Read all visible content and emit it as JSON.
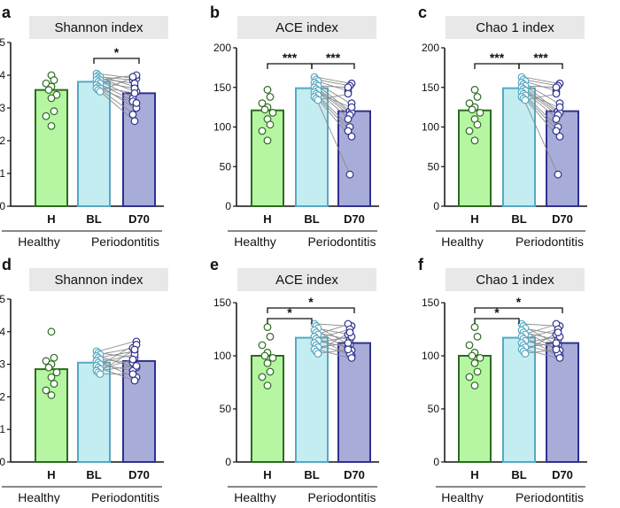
{
  "chart_data": [
    {
      "type": "bar",
      "panel_label": "a",
      "title": "Shannon index",
      "categories": [
        "H",
        "BL",
        "D70"
      ],
      "values": [
        3.55,
        3.8,
        3.45
      ],
      "ylim": [
        0,
        5
      ],
      "yticks": [
        0,
        1,
        2,
        3,
        4,
        5
      ],
      "ytick_labels": [
        "0",
        "1",
        "2",
        "3",
        "4",
        "5"
      ],
      "groups": [
        "Healthy",
        "Periodontitis"
      ],
      "points": {
        "H": [
          4.0,
          3.85,
          3.75,
          3.65,
          3.55,
          3.4,
          3.3,
          2.9,
          2.75,
          2.45
        ],
        "pairs": [
          [
            4.05,
            3.9
          ],
          [
            4.0,
            3.65
          ],
          [
            3.95,
            3.85
          ],
          [
            3.95,
            3.5
          ],
          [
            3.9,
            3.75
          ],
          [
            3.85,
            3.3
          ],
          [
            3.85,
            4.0
          ],
          [
            3.8,
            3.6
          ],
          [
            3.75,
            3.2
          ],
          [
            3.7,
            3.0
          ],
          [
            3.65,
            3.45
          ],
          [
            3.6,
            2.8
          ],
          [
            3.6,
            3.15
          ],
          [
            3.55,
            2.6
          ],
          [
            3.5,
            3.95
          ]
        ]
      },
      "significance": [
        {
          "from": "BL",
          "to": "D70",
          "label": "*"
        }
      ]
    },
    {
      "type": "bar",
      "panel_label": "b",
      "title": "ACE index",
      "categories": [
        "H",
        "BL",
        "D70"
      ],
      "values": [
        121,
        149,
        120
      ],
      "ylim": [
        0,
        200
      ],
      "yticks": [
        0,
        50,
        100,
        150,
        200
      ],
      "ytick_labels": [
        "0",
        "50",
        "100",
        "150",
        "200"
      ],
      "groups": [
        "Healthy",
        "Periodontitis"
      ],
      "points": {
        "H": [
          147,
          138,
          130,
          125,
          122,
          118,
          110,
          103,
          95,
          83
        ],
        "pairs": [
          [
            163,
            155
          ],
          [
            160,
            152
          ],
          [
            158,
            145
          ],
          [
            156,
            130
          ],
          [
            154,
            120
          ],
          [
            152,
            150
          ],
          [
            150,
            118
          ],
          [
            148,
            115
          ],
          [
            146,
            110
          ],
          [
            144,
            125
          ],
          [
            142,
            100
          ],
          [
            140,
            95
          ],
          [
            138,
            88
          ],
          [
            136,
            40
          ],
          [
            134,
            142
          ]
        ]
      },
      "significance": [
        {
          "from": "H",
          "to": "BL",
          "label": "***"
        },
        {
          "from": "BL",
          "to": "D70",
          "label": "***"
        }
      ]
    },
    {
      "type": "bar",
      "panel_label": "c",
      "title": "Chao 1 index",
      "categories": [
        "H",
        "BL",
        "D70"
      ],
      "values": [
        121,
        149,
        120
      ],
      "ylim": [
        0,
        200
      ],
      "yticks": [
        0,
        50,
        100,
        150,
        200
      ],
      "ytick_labels": [
        "0",
        "50",
        "100",
        "150",
        "200"
      ],
      "groups": [
        "Healthy",
        "Periodontitis"
      ],
      "points": {
        "H": [
          147,
          138,
          130,
          125,
          122,
          118,
          110,
          103,
          95,
          83
        ],
        "pairs": [
          [
            163,
            155
          ],
          [
            160,
            152
          ],
          [
            158,
            145
          ],
          [
            156,
            130
          ],
          [
            154,
            120
          ],
          [
            152,
            150
          ],
          [
            150,
            118
          ],
          [
            148,
            115
          ],
          [
            146,
            110
          ],
          [
            144,
            125
          ],
          [
            142,
            100
          ],
          [
            140,
            95
          ],
          [
            138,
            88
          ],
          [
            136,
            40
          ],
          [
            134,
            142
          ]
        ]
      },
      "significance": [
        {
          "from": "H",
          "to": "BL",
          "label": "***"
        },
        {
          "from": "BL",
          "to": "D70",
          "label": "***"
        }
      ]
    },
    {
      "type": "bar",
      "panel_label": "d",
      "title": "Shannon index",
      "categories": [
        "H",
        "BL",
        "D70"
      ],
      "values": [
        2.85,
        3.05,
        3.1
      ],
      "ylim": [
        0,
        5
      ],
      "yticks": [
        0,
        1,
        2,
        3,
        4,
        5
      ],
      "ytick_labels": [
        "0",
        "1",
        "2",
        "3",
        "4",
        "5"
      ],
      "groups": [
        "Healthy",
        "Periodontitis"
      ],
      "points": {
        "H": [
          4.0,
          3.2,
          3.1,
          3.0,
          2.9,
          2.75,
          2.6,
          2.4,
          2.2,
          2.05
        ],
        "pairs": [
          [
            3.4,
            3.7
          ],
          [
            3.35,
            3.2
          ],
          [
            3.3,
            3.5
          ],
          [
            3.25,
            2.9
          ],
          [
            3.2,
            3.4
          ],
          [
            3.15,
            3.05
          ],
          [
            3.1,
            2.6
          ],
          [
            3.05,
            3.3
          ],
          [
            3.0,
            2.8
          ],
          [
            2.95,
            3.6
          ],
          [
            2.9,
            2.5
          ],
          [
            2.85,
            3.15
          ],
          [
            2.8,
            2.95
          ],
          [
            2.75,
            3.45
          ],
          [
            2.7,
            2.7
          ]
        ]
      },
      "significance": []
    },
    {
      "type": "bar",
      "panel_label": "e",
      "title": "ACE index",
      "categories": [
        "H",
        "BL",
        "D70"
      ],
      "values": [
        100,
        117,
        112
      ],
      "ylim": [
        0,
        150
      ],
      "yticks": [
        0,
        50,
        100,
        150
      ],
      "ytick_labels": [
        "0",
        "50",
        "100",
        "150"
      ],
      "groups": [
        "Healthy",
        "Periodontitis"
      ],
      "points": {
        "H": [
          127,
          118,
          110,
          103,
          100,
          98,
          93,
          85,
          80,
          72
        ],
        "pairs": [
          [
            130,
            128
          ],
          [
            128,
            110
          ],
          [
            126,
            120
          ],
          [
            124,
            105
          ],
          [
            122,
            115
          ],
          [
            120,
            130
          ],
          [
            118,
            100
          ],
          [
            116,
            125
          ],
          [
            114,
            108
          ],
          [
            112,
            118
          ],
          [
            110,
            102
          ],
          [
            108,
            112
          ],
          [
            106,
            98
          ],
          [
            104,
            122
          ],
          [
            102,
            106
          ]
        ]
      },
      "significance": [
        {
          "from": "H",
          "to": "BL",
          "label": "*"
        },
        {
          "from": "H",
          "to": "D70",
          "label": "*"
        }
      ]
    },
    {
      "type": "bar",
      "panel_label": "f",
      "title": "Chao 1 index",
      "categories": [
        "H",
        "BL",
        "D70"
      ],
      "values": [
        100,
        117,
        112
      ],
      "ylim": [
        0,
        150
      ],
      "yticks": [
        0,
        50,
        100,
        150
      ],
      "ytick_labels": [
        "0",
        "50",
        "100",
        "150"
      ],
      "groups": [
        "Healthy",
        "Periodontitis"
      ],
      "points": {
        "H": [
          127,
          118,
          110,
          103,
          100,
          98,
          93,
          85,
          80,
          72
        ],
        "pairs": [
          [
            130,
            128
          ],
          [
            128,
            110
          ],
          [
            126,
            120
          ],
          [
            124,
            105
          ],
          [
            122,
            115
          ],
          [
            120,
            130
          ],
          [
            118,
            100
          ],
          [
            116,
            125
          ],
          [
            114,
            108
          ],
          [
            112,
            118
          ],
          [
            110,
            102
          ],
          [
            108,
            112
          ],
          [
            106,
            98
          ],
          [
            104,
            122
          ],
          [
            102,
            106
          ]
        ]
      },
      "significance": [
        {
          "from": "H",
          "to": "BL",
          "label": "*"
        },
        {
          "from": "H",
          "to": "D70",
          "label": "*"
        }
      ]
    }
  ],
  "style": {
    "bar_fill": [
      "#b6f5a2",
      "#c4edf2",
      "#a8acd8"
    ],
    "bar_stroke": [
      "#2c6b1f",
      "#55a9c4",
      "#2f3190"
    ],
    "title_box": "#e8e8e8",
    "pair_line": "#8c8c8c"
  }
}
